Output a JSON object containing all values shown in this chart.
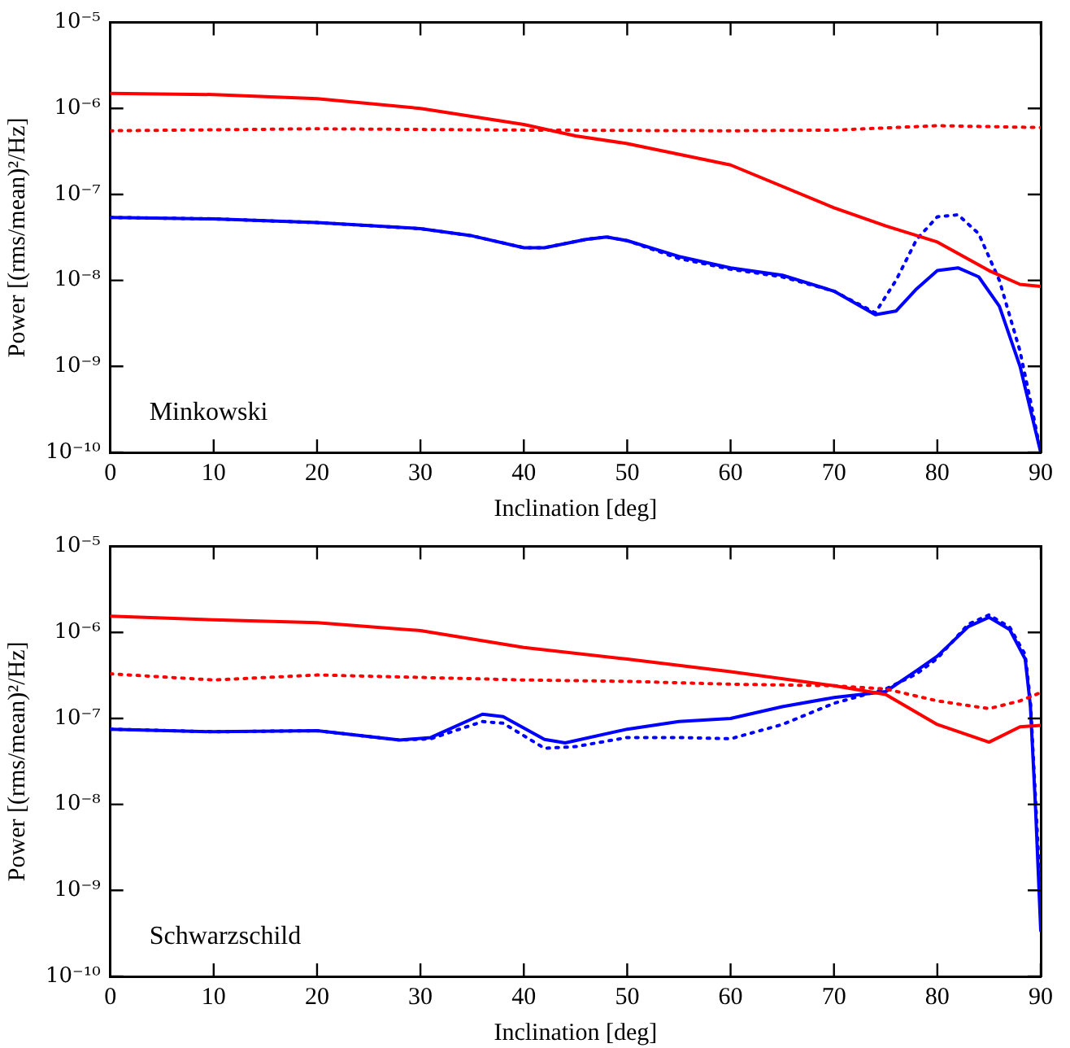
{
  "chart_data": [
    {
      "type": "line",
      "xlabel": "Inclination [deg]",
      "ylabel": "Power [(rms/mean)²/Hz]",
      "annotations": [
        "Minkowski"
      ],
      "log": "y",
      "grid": false,
      "legend": false,
      "marker": "none",
      "xlim": [
        0,
        90
      ],
      "xticks": [
        0,
        10,
        20,
        30,
        40,
        50,
        60,
        70,
        80,
        90
      ],
      "ylim": [
        1e-10,
        1e-05
      ],
      "yticks": [
        {
          "value": 1e-10,
          "label": "10⁻¹⁰"
        },
        {
          "value": 1e-09,
          "label": "10⁻⁹"
        },
        {
          "value": 1e-08,
          "label": "10⁻⁸"
        },
        {
          "value": 1e-07,
          "label": "10⁻⁷"
        },
        {
          "value": 1e-06,
          "label": "10⁻⁶"
        },
        {
          "value": 1e-05,
          "label": "10⁻⁵"
        }
      ],
      "series": [
        {
          "color": "#ff0000",
          "line_style": "solid",
          "x": [
            0,
            10,
            20,
            30,
            40,
            45,
            50,
            60,
            70,
            75,
            80,
            85,
            88,
            90
          ],
          "values": [
            1.5e-06,
            1.45e-06,
            1.3e-06,
            1e-06,
            6.5e-07,
            4.8e-07,
            3.9e-07,
            2.2e-07,
            7e-08,
            4.3e-08,
            2.8e-08,
            1.3e-08,
            9e-09,
            8.5e-09
          ]
        },
        {
          "color": "#ff0000",
          "line_style": "dotted",
          "x": [
            0,
            20,
            40,
            60,
            70,
            80,
            90
          ],
          "values": [
            5.5e-07,
            5.8e-07,
            5.6e-07,
            5.5e-07,
            5.6e-07,
            6.3e-07,
            6e-07
          ]
        },
        {
          "color": "#0000ff",
          "line_style": "solid",
          "x": [
            0,
            10,
            20,
            30,
            35,
            40,
            42,
            46,
            48,
            50,
            55,
            60,
            65,
            70,
            74,
            76,
            78,
            80,
            82,
            84,
            86,
            88,
            90
          ],
          "values": [
            5.4e-08,
            5.2e-08,
            4.7e-08,
            4e-08,
            3.3e-08,
            2.4e-08,
            2.4e-08,
            3e-08,
            3.2e-08,
            2.9e-08,
            1.9e-08,
            1.4e-08,
            1.15e-08,
            7.5e-09,
            4e-09,
            4.4e-09,
            8e-09,
            1.3e-08,
            1.4e-08,
            1.1e-08,
            5e-09,
            1e-09,
            1e-10
          ]
        },
        {
          "color": "#0000ff",
          "line_style": "dotted",
          "x": [
            0,
            10,
            20,
            30,
            35,
            40,
            42,
            46,
            48,
            50,
            55,
            60,
            65,
            70,
            74,
            76,
            78,
            80,
            82,
            84,
            86,
            88,
            89,
            90
          ],
          "values": [
            5.4e-08,
            5.2e-08,
            4.7e-08,
            4e-08,
            3.3e-08,
            2.4e-08,
            2.4e-08,
            3e-08,
            3.2e-08,
            2.9e-08,
            1.8e-08,
            1.35e-08,
            1.1e-08,
            7.5e-09,
            4.2e-09,
            1e-08,
            3e-08,
            5.5e-08,
            5.8e-08,
            3.5e-08,
            1e-08,
            1.5e-09,
            4e-10,
            1e-10
          ]
        }
      ]
    },
    {
      "type": "line",
      "xlabel": "Inclination [deg]",
      "ylabel": "Power [(rms/mean)²/Hz]",
      "annotations": [
        "Schwarzschild"
      ],
      "log": "y",
      "grid": false,
      "legend": false,
      "marker": "none",
      "xlim": [
        0,
        90
      ],
      "xticks": [
        0,
        10,
        20,
        30,
        40,
        50,
        60,
        70,
        80,
        90
      ],
      "ylim": [
        1e-10,
        1e-05
      ],
      "yticks": [
        {
          "value": 1e-10,
          "label": "10⁻¹⁰"
        },
        {
          "value": 1e-09,
          "label": "10⁻⁹"
        },
        {
          "value": 1e-08,
          "label": "10⁻⁸"
        },
        {
          "value": 1e-07,
          "label": "10⁻⁷"
        },
        {
          "value": 1e-06,
          "label": "10⁻⁶"
        },
        {
          "value": 1e-05,
          "label": "10⁻⁵"
        }
      ],
      "series": [
        {
          "color": "#ff0000",
          "line_style": "solid",
          "x": [
            0,
            10,
            20,
            30,
            40,
            50,
            60,
            70,
            75,
            80,
            85,
            88,
            90
          ],
          "values": [
            1.55e-06,
            1.4e-06,
            1.3e-06,
            1.05e-06,
            6.7e-07,
            4.9e-07,
            3.5e-07,
            2.4e-07,
            1.9e-07,
            8.5e-08,
            5.3e-08,
            8e-08,
            8.3e-08
          ]
        },
        {
          "color": "#ff0000",
          "line_style": "dotted",
          "x": [
            0,
            10,
            20,
            30,
            40,
            50,
            60,
            70,
            75,
            80,
            85,
            88,
            90
          ],
          "values": [
            3.3e-07,
            2.8e-07,
            3.2e-07,
            3e-07,
            2.8e-07,
            2.7e-07,
            2.5e-07,
            2.4e-07,
            2.2e-07,
            1.6e-07,
            1.3e-07,
            1.6e-07,
            2e-07
          ]
        },
        {
          "color": "#0000ff",
          "line_style": "solid",
          "x": [
            0,
            10,
            20,
            28,
            31,
            36,
            38,
            42,
            44,
            50,
            55,
            60,
            65,
            70,
            75,
            78,
            80,
            83,
            85,
            87,
            88.5,
            89,
            89.5,
            90
          ],
          "values": [
            7.5e-08,
            7e-08,
            7.2e-08,
            5.6e-08,
            6e-08,
            1.12e-07,
            1.05e-07,
            5.7e-08,
            5.2e-08,
            7.5e-08,
            9.2e-08,
            1e-07,
            1.37e-07,
            1.75e-07,
            2.05e-07,
            3.6e-07,
            5.3e-07,
            1.17e-06,
            1.5e-06,
            1.08e-06,
            4.9e-07,
            1.4e-07,
            9e-09,
            3.4e-10
          ]
        },
        {
          "color": "#0000ff",
          "line_style": "dotted",
          "x": [
            0,
            10,
            20,
            28,
            31,
            36,
            38,
            42,
            45,
            50,
            55,
            60,
            65,
            70,
            75,
            78,
            80,
            83,
            85,
            87,
            88.5,
            89,
            90
          ],
          "values": [
            7.5e-08,
            7e-08,
            7.2e-08,
            5.6e-08,
            5.8e-08,
            9.2e-08,
            8.8e-08,
            4.5e-08,
            4.7e-08,
            6e-08,
            6e-08,
            5.8e-08,
            8.5e-08,
            1.5e-07,
            2.2e-07,
            3.3e-07,
            5e-07,
            1.25e-06,
            1.6e-06,
            1.15e-06,
            5.5e-07,
            1.6e-07,
            8e-10
          ]
        }
      ]
    }
  ]
}
